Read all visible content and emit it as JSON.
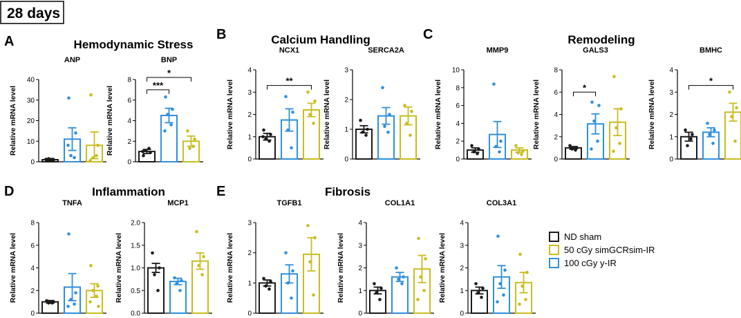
{
  "figure_label": "28 days",
  "legend": [
    {
      "label": "ND sham",
      "color": "#1a1a1a"
    },
    {
      "label": "50 cGy simGCRsim-IR",
      "color": "#c9bd1e"
    },
    {
      "label": "100 cGy y-IR",
      "color": "#2e8fde"
    }
  ],
  "colors": {
    "sham": "#1a1a1a",
    "gcr": "#c9bd1e",
    "gamma": "#2e8fde"
  },
  "sections": [
    {
      "letter": "A",
      "title": "Hemodynamic Stress"
    },
    {
      "letter": "B",
      "title": "Calcium Handling"
    },
    {
      "letter": "C",
      "title": "Remodeling"
    },
    {
      "letter": "D",
      "title": "Inflammation"
    },
    {
      "letter": "E",
      "title": "Fibrosis"
    }
  ],
  "chart_data": [
    {
      "type": "bar",
      "title": "ANP",
      "ylabel": "Relative mRNA level",
      "ylim": [
        0,
        40
      ],
      "yticks": [
        "0",
        "10",
        "20",
        "30",
        "40"
      ],
      "series": [
        {
          "name": "ND sham",
          "mean": 1.0,
          "sem": 0.6,
          "points": [
            0.5,
            1.0,
            1.5,
            0.8,
            1.2
          ]
        },
        {
          "name": "100 cGy y-IR",
          "mean": 11,
          "sem": 5.5,
          "points": [
            31,
            14,
            3,
            2,
            8
          ]
        },
        {
          "name": "50 cGy simGCRsim-IR",
          "mean": 8,
          "sem": 6.5,
          "points": [
            32.5,
            8,
            2,
            3,
            0.5
          ]
        }
      ],
      "significance": []
    },
    {
      "type": "bar",
      "title": "BNP",
      "ylabel": "Relative mRNA level",
      "ylim": [
        0,
        8
      ],
      "yticks": [
        "0",
        "2",
        "4",
        "6",
        "8"
      ],
      "series": [
        {
          "name": "ND sham",
          "mean": 1.0,
          "sem": 0.2,
          "points": [
            0.6,
            0.9,
            1.1,
            1.3,
            1.0
          ]
        },
        {
          "name": "100 cGy y-IR",
          "mean": 4.5,
          "sem": 0.7,
          "points": [
            6.3,
            5.1,
            4.6,
            3.6,
            3.0
          ]
        },
        {
          "name": "50 cGy simGCRsim-IR",
          "mean": 2.0,
          "sem": 0.5,
          "points": [
            3.0,
            2.2,
            1.3,
            1.5
          ]
        }
      ],
      "significance": [
        {
          "label": "***",
          "from": 0,
          "to": 1,
          "y": 7.0
        },
        {
          "label": "*",
          "from": 0,
          "to": 2,
          "y": 8.2
        }
      ]
    },
    {
      "type": "bar",
      "title": "NCX1",
      "ylabel": "Relative mRNA level",
      "ylim": [
        0,
        4
      ],
      "yticks": [
        "0",
        "1",
        "2",
        "3",
        "4"
      ],
      "series": [
        {
          "name": "ND sham",
          "mean": 1.0,
          "sem": 0.15,
          "points": [
            1.3,
            1.1,
            0.9,
            0.8,
            1.0
          ]
        },
        {
          "name": "100 cGy y-IR",
          "mean": 1.75,
          "sem": 0.5,
          "points": [
            2.8,
            2.1,
            1.3,
            0.5
          ]
        },
        {
          "name": "50 cGy simGCRsim-IR",
          "mean": 2.2,
          "sem": 0.3,
          "points": [
            3.0,
            2.6,
            2.0,
            1.6
          ]
        }
      ],
      "significance": [
        {
          "label": "**",
          "from": 0,
          "to": 2,
          "y": 3.3
        }
      ]
    },
    {
      "type": "bar",
      "title": "SERCA2A",
      "ylabel": "Relative mRNA level",
      "ylim": [
        0,
        3
      ],
      "yticks": [
        "0",
        "1",
        "2",
        "3"
      ],
      "series": [
        {
          "name": "ND sham",
          "mean": 1.0,
          "sem": 0.12,
          "points": [
            1.3,
            1.0,
            0.9,
            0.8
          ]
        },
        {
          "name": "100 cGy y-IR",
          "mean": 1.45,
          "sem": 0.28,
          "points": [
            2.4,
            1.5,
            1.1,
            0.9
          ]
        },
        {
          "name": "50 cGy simGCRsim-IR",
          "mean": 1.45,
          "sem": 0.3,
          "points": [
            1.8,
            1.6,
            1.2,
            0.8
          ]
        }
      ],
      "significance": []
    },
    {
      "type": "bar",
      "title": "MMP9",
      "ylabel": "Relative mRNA level",
      "ylim": [
        0,
        10
      ],
      "yticks": [
        "0",
        "2",
        "4",
        "6",
        "8",
        "10"
      ],
      "series": [
        {
          "name": "ND sham",
          "mean": 1.0,
          "sem": 0.25,
          "points": [
            1.5,
            1.1,
            0.8,
            0.6
          ]
        },
        {
          "name": "100 cGy y-IR",
          "mean": 2.75,
          "sem": 1.45,
          "points": [
            8.4,
            2.0,
            1.4,
            0.8
          ]
        },
        {
          "name": "50 cGy simGCRsim-IR",
          "mean": 1.0,
          "sem": 0.25,
          "points": [
            1.5,
            0.9,
            0.7,
            0.5
          ]
        }
      ],
      "significance": []
    },
    {
      "type": "bar",
      "title": "GALS3",
      "ylabel": "Relative mRNA level",
      "ylim": [
        0,
        8
      ],
      "yticks": [
        "0",
        "2",
        "4",
        "6",
        "8"
      ],
      "series": [
        {
          "name": "ND sham",
          "mean": 1.0,
          "sem": 0.12,
          "points": [
            1.2,
            1.0,
            0.9,
            0.8
          ]
        },
        {
          "name": "100 cGy y-IR",
          "mean": 3.15,
          "sem": 0.9,
          "points": [
            5.1,
            4.8,
            3.4,
            1.6,
            0.9
          ]
        },
        {
          "name": "50 cGy simGCRsim-IR",
          "mean": 3.3,
          "sem": 1.2,
          "points": [
            7.4,
            4.5,
            2.8,
            1.4,
            0.7
          ]
        }
      ],
      "significance": [
        {
          "label": "*",
          "from": 0,
          "to": 1,
          "y": 6.0
        }
      ]
    },
    {
      "type": "bar",
      "title": "BMHC",
      "ylabel": "Relative mRNA level",
      "ylim": [
        0,
        4
      ],
      "yticks": [
        "0",
        "1",
        "2",
        "3",
        "4"
      ],
      "series": [
        {
          "name": "ND sham",
          "mean": 1.0,
          "sem": 0.2,
          "points": [
            1.3,
            1.1,
            0.6,
            0.9
          ]
        },
        {
          "name": "100 cGy y-IR",
          "mean": 1.2,
          "sem": 0.2,
          "points": [
            1.6,
            1.3,
            1.1,
            0.7
          ]
        },
        {
          "name": "50 cGy simGCRsim-IR",
          "mean": 2.1,
          "sem": 0.4,
          "points": [
            3.0,
            2.3,
            1.9,
            0.8
          ]
        }
      ],
      "significance": [
        {
          "label": "*",
          "from": 0,
          "to": 2,
          "y": 3.3
        }
      ]
    },
    {
      "type": "bar",
      "title": "TNFA",
      "ylabel": "Relative mRNA level",
      "ylim": [
        0,
        8
      ],
      "yticks": [
        "0",
        "2",
        "4",
        "6",
        "8"
      ],
      "series": [
        {
          "name": "ND sham",
          "mean": 1.0,
          "sem": 0.12,
          "points": [
            1.1,
            1.0,
            0.9,
            0.9
          ]
        },
        {
          "name": "100 cGy y-IR",
          "mean": 2.3,
          "sem": 1.2,
          "points": [
            7.0,
            1.8,
            1.2,
            0.8,
            0.6
          ]
        },
        {
          "name": "50 cGy simGCRsim-IR",
          "mean": 2.0,
          "sem": 0.6,
          "points": [
            4.2,
            2.4,
            2.0,
            1.5,
            1.0,
            0.6
          ]
        }
      ],
      "significance": []
    },
    {
      "type": "bar",
      "title": "MCP1",
      "ylabel": "Relative mRNA level",
      "ylim": [
        0,
        2.0
      ],
      "yticks": [
        "0.0",
        "0.5",
        "1.0",
        "1.5",
        "2.0"
      ],
      "series": [
        {
          "name": "ND sham",
          "mean": 1.0,
          "sem": 0.1,
          "points": [
            1.33,
            1.0,
            0.85,
            0.5
          ]
        },
        {
          "name": "100 cGy y-IR",
          "mean": 0.7,
          "sem": 0.07,
          "points": [
            0.78,
            0.72,
            0.65,
            0.5
          ]
        },
        {
          "name": "50 cGy simGCRsim-IR",
          "mean": 1.15,
          "sem": 0.18,
          "points": [
            1.8,
            1.25,
            1.05,
            0.85
          ]
        }
      ],
      "significance": []
    },
    {
      "type": "bar",
      "title": "TGFB1",
      "ylabel": "Relative mRNA level",
      "ylim": [
        0,
        3
      ],
      "yticks": [
        "0",
        "1",
        "2",
        "3"
      ],
      "series": [
        {
          "name": "ND sham",
          "mean": 1.0,
          "sem": 0.1,
          "points": [
            1.15,
            1.05,
            0.9,
            0.8
          ]
        },
        {
          "name": "100 cGy y-IR",
          "mean": 1.3,
          "sem": 0.3,
          "points": [
            2.0,
            1.4,
            1.0,
            0.5
          ]
        },
        {
          "name": "50 cGy simGCRsim-IR",
          "mean": 1.95,
          "sem": 0.55,
          "points": [
            2.9,
            2.5,
            1.7,
            0.6
          ]
        }
      ],
      "significance": []
    },
    {
      "type": "bar",
      "title": "COL1A1",
      "ylabel": "Relative mRNA level",
      "ylim": [
        0,
        4
      ],
      "yticks": [
        "0",
        "1",
        "2",
        "3",
        "4"
      ],
      "series": [
        {
          "name": "ND sham",
          "mean": 1.0,
          "sem": 0.15,
          "points": [
            1.3,
            1.1,
            0.9,
            0.6
          ]
        },
        {
          "name": "100 cGy y-IR",
          "mean": 1.6,
          "sem": 0.2,
          "points": [
            2.0,
            1.6,
            1.5,
            1.3
          ]
        },
        {
          "name": "50 cGy simGCRsim-IR",
          "mean": 1.95,
          "sem": 0.6,
          "points": [
            3.3,
            2.4,
            1.6,
            1.0,
            0.6
          ]
        }
      ],
      "significance": []
    },
    {
      "type": "bar",
      "title": "COL3A1",
      "ylabel": "Relative mRNA level",
      "ylim": [
        0,
        4
      ],
      "yticks": [
        "0",
        "1",
        "2",
        "3",
        "4"
      ],
      "series": [
        {
          "name": "ND sham",
          "mean": 1.0,
          "sem": 0.15,
          "points": [
            1.3,
            1.1,
            0.9,
            0.7
          ]
        },
        {
          "name": "100 cGy y-IR",
          "mean": 1.6,
          "sem": 0.5,
          "points": [
            3.4,
            1.9,
            1.3,
            0.8,
            0.5
          ]
        },
        {
          "name": "50 cGy simGCRsim-IR",
          "mean": 1.35,
          "sem": 0.45,
          "points": [
            2.6,
            1.8,
            1.2,
            0.6,
            0.4
          ]
        }
      ],
      "significance": []
    }
  ]
}
